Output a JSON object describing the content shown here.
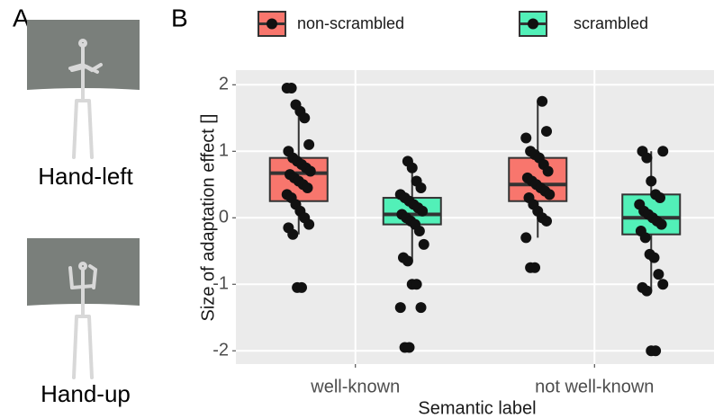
{
  "panel_a": {
    "label": "A",
    "images": [
      {
        "caption": "Hand-left"
      },
      {
        "caption": "Hand-up"
      }
    ]
  },
  "chart_data": {
    "type": "box",
    "panel_label": "B",
    "xlabel": "Semantic label",
    "ylabel": "Size of adaptation effect []",
    "categories": [
      "well-known",
      "not well-known"
    ],
    "ylim": [
      -2.2,
      2.22
    ],
    "yticks": [
      -2,
      -1,
      0,
      1,
      2
    ],
    "grid": true,
    "series": [
      {
        "name": "non-scrambled",
        "color": "#f8766d",
        "boxes": [
          {
            "low": -0.25,
            "q1": 0.25,
            "median": 0.67,
            "q3": 0.9,
            "high": 1.7,
            "points": [
              1.95,
              1.95,
              1.7,
              1.6,
              1.5,
              1.1,
              1.0,
              0.9,
              0.85,
              0.8,
              0.75,
              0.7,
              0.65,
              0.6,
              0.55,
              0.5,
              0.45,
              0.35,
              0.3,
              0.2,
              0.1,
              0.0,
              -0.1,
              -0.15,
              -0.25,
              -1.05,
              -1.05
            ]
          },
          {
            "low": -0.3,
            "q1": 0.25,
            "median": 0.5,
            "q3": 0.9,
            "high": 1.75,
            "points": [
              1.75,
              1.3,
              1.2,
              1.0,
              0.95,
              0.9,
              0.8,
              0.7,
              0.6,
              0.55,
              0.5,
              0.45,
              0.4,
              0.35,
              0.3,
              0.2,
              0.1,
              0.0,
              -0.05,
              -0.3,
              -0.75,
              -0.75
            ]
          }
        ]
      },
      {
        "name": "scrambled",
        "color": "#52f0b8",
        "boxes": [
          {
            "low": -0.65,
            "q1": -0.1,
            "median": 0.05,
            "q3": 0.3,
            "high": 0.85,
            "points": [
              0.85,
              0.75,
              0.55,
              0.45,
              0.35,
              0.3,
              0.25,
              0.2,
              0.15,
              0.1,
              0.05,
              0.0,
              -0.05,
              -0.1,
              -0.2,
              -0.4,
              -0.6,
              -0.65,
              -1.0,
              -1.0,
              -1.35,
              -1.35,
              -1.95,
              -1.95
            ]
          },
          {
            "low": -1.1,
            "q1": -0.25,
            "median": 0.0,
            "q3": 0.35,
            "high": 1.0,
            "points": [
              1.0,
              1.0,
              0.9,
              0.55,
              0.35,
              0.3,
              0.2,
              0.1,
              0.05,
              0.0,
              -0.05,
              -0.1,
              -0.2,
              -0.3,
              -0.55,
              -0.6,
              -0.85,
              -1.0,
              -1.05,
              -1.1,
              -2.0,
              -2.0
            ]
          }
        ]
      }
    ]
  }
}
